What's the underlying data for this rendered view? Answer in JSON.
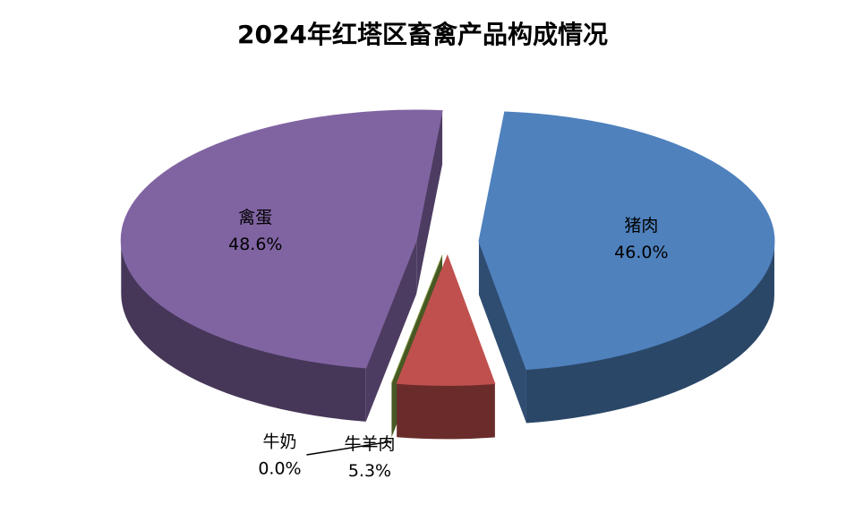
{
  "chart_data": {
    "type": "pie",
    "title": "2024年红塔区畜禽产品构成情况",
    "categories": [
      "猪肉",
      "牛羊肉",
      "牛奶",
      "禽蛋"
    ],
    "values": [
      46.0,
      5.3,
      0.0,
      48.6
    ],
    "value_labels": [
      "46.0%",
      "5.3%",
      "0.0%",
      "48.6%"
    ],
    "colors": [
      "#4f81bd",
      "#c0504d",
      "#77933c",
      "#8064a2"
    ]
  }
}
